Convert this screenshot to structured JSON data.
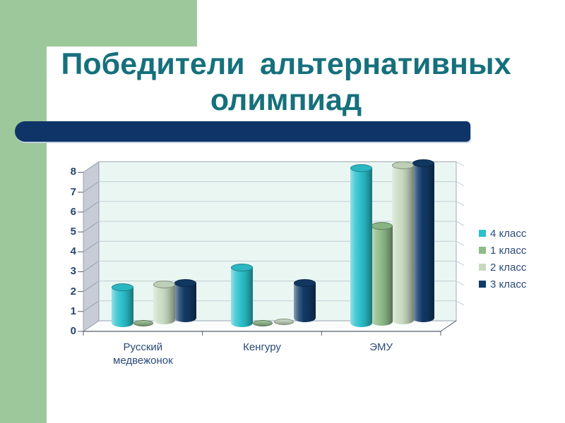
{
  "slide": {
    "title": "Победители альтернативных олимпиад",
    "colors": {
      "accent_green": "#9CC89B",
      "bar_navy": "#0F3568",
      "title_teal": "#16707C"
    }
  },
  "chart_data": {
    "type": "bar",
    "style": "3d-cylinder",
    "categories": [
      "Русский медвежонок",
      "Кенгуру",
      "ЭМУ"
    ],
    "series": [
      {
        "name": "4 класс",
        "color": "#2CC1CC",
        "values": [
          2,
          3,
          8
        ]
      },
      {
        "name": "1 класс",
        "color": "#8FBC8A",
        "values": [
          0,
          0,
          5
        ]
      },
      {
        "name": "2 класс",
        "color": "#C7DAC0",
        "values": [
          2,
          0,
          8
        ]
      },
      {
        "name": "3 класс",
        "color": "#123A66",
        "values": [
          2,
          2,
          8
        ]
      }
    ],
    "ylim": [
      0,
      8
    ],
    "yticks": [
      0,
      1,
      2,
      3,
      4,
      5,
      6,
      7,
      8
    ],
    "grid": true,
    "legend_position": "right",
    "colors": {
      "plot_bg": "#E9F6F2",
      "wall": "#C8CCD6",
      "floor": "#FBFDFD",
      "gridline": "#C3CDD5",
      "wall_line": "#9AA4B4",
      "edge": "#8E97A6",
      "axis_line": "#555E6E",
      "tick_text": "#28446F",
      "label_text": "#2B4A78"
    }
  }
}
